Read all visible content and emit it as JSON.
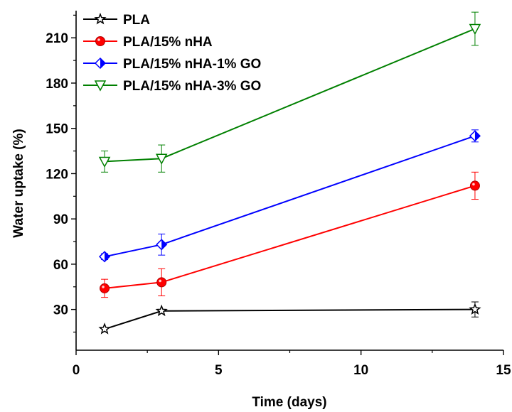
{
  "chart_data": {
    "type": "line",
    "title": "",
    "xlabel": "Time (days)",
    "ylabel": "Water uptake (%)",
    "xlim": [
      0,
      15
    ],
    "ylim": [
      3,
      228
    ],
    "xticks": [
      0,
      5,
      10,
      15
    ],
    "yticks": [
      30,
      60,
      90,
      120,
      150,
      180,
      210
    ],
    "x": [
      1,
      3,
      14
    ],
    "grid": false,
    "legend_position": "top-left",
    "series": [
      {
        "name": "PLA",
        "color": "#000000",
        "marker": "star",
        "values": [
          17,
          29,
          30
        ],
        "errors": [
          0,
          0,
          5
        ]
      },
      {
        "name": "PLA/15% nHA",
        "color": "#ff0000",
        "marker": "circle",
        "values": [
          44,
          48,
          112
        ],
        "errors": [
          6,
          9,
          9
        ]
      },
      {
        "name": "PLA/15% nHA-1% GO",
        "color": "#0000ff",
        "marker": "diamond-half",
        "values": [
          65,
          73,
          145
        ],
        "errors": [
          2,
          7,
          4
        ]
      },
      {
        "name": "PLA/15% nHA-3% GO",
        "color": "#008000",
        "marker": "triangle-down-open",
        "values": [
          128,
          130,
          216
        ],
        "errors": [
          7,
          9,
          11
        ]
      }
    ]
  }
}
